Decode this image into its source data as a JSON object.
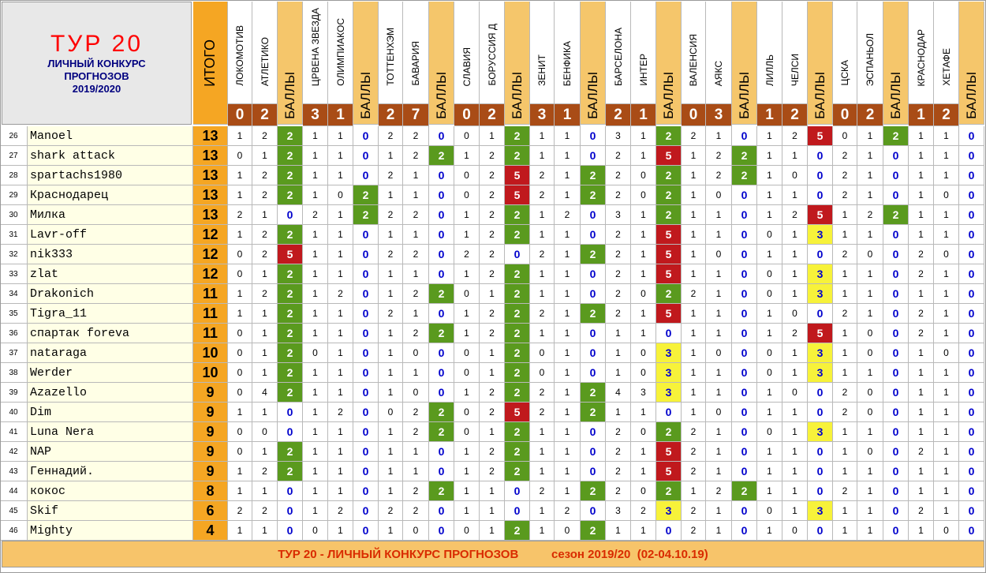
{
  "header": {
    "title_line1": "ТУР  20",
    "title_line2": "ЛИЧНЫЙ  КОНКУРС",
    "title_line3": "ПРОГНОЗОВ",
    "title_line4": "2019/2020",
    "itogo_label": "ИТОГО",
    "points_label": "БАЛЛЫ"
  },
  "matches": [
    {
      "home": "ЛОКОМОТИВ",
      "away": "АТЛЕТИКО",
      "home_goals": "0",
      "away_goals": "2"
    },
    {
      "home": "ЦРВЕНА ЗВЕЗДА",
      "away": "ОЛИМПИАКОС",
      "home_goals": "3",
      "away_goals": "1"
    },
    {
      "home": "ТОТТЕНХЭМ",
      "away": "БАВАРИЯ",
      "home_goals": "2",
      "away_goals": "7"
    },
    {
      "home": "СЛАВИЯ",
      "away": "БОРУССИЯ Д",
      "home_goals": "0",
      "away_goals": "2"
    },
    {
      "home": "ЗЕНИТ",
      "away": "БЕНФИКА",
      "home_goals": "3",
      "away_goals": "1"
    },
    {
      "home": "БАРСЕЛОНА",
      "away": "ИНТЕР",
      "home_goals": "2",
      "away_goals": "1"
    },
    {
      "home": "ВАЛЕНСИЯ",
      "away": "АЯКС",
      "home_goals": "0",
      "away_goals": "3"
    },
    {
      "home": "ЛИЛЛЬ",
      "away": "ЧЕЛСИ",
      "home_goals": "1",
      "away_goals": "2"
    },
    {
      "home": "ЦСКА",
      "away": "ЭСПАНЬОЛ",
      "home_goals": "0",
      "away_goals": "2"
    },
    {
      "home": "КРАСНОДАР",
      "away": "ХЕТАФЕ",
      "home_goals": "1",
      "away_goals": "2"
    }
  ],
  "rows": [
    {
      "num": "26",
      "name": "Manoel",
      "total": "13",
      "cells": [
        [
          "1",
          "2",
          "2"
        ],
        [
          "1",
          "1",
          "0"
        ],
        [
          "2",
          "2",
          "0"
        ],
        [
          "0",
          "1",
          "2"
        ],
        [
          "1",
          "1",
          "0"
        ],
        [
          "3",
          "1",
          "2"
        ],
        [
          "2",
          "1",
          "0"
        ],
        [
          "1",
          "2",
          "5"
        ],
        [
          "0",
          "1",
          "2"
        ],
        [
          "1",
          "1",
          "0"
        ]
      ]
    },
    {
      "num": "27",
      "name": "shark attack",
      "total": "13",
      "cells": [
        [
          "0",
          "1",
          "2"
        ],
        [
          "1",
          "1",
          "0"
        ],
        [
          "1",
          "2",
          "2"
        ],
        [
          "1",
          "2",
          "2"
        ],
        [
          "1",
          "1",
          "0"
        ],
        [
          "2",
          "1",
          "5"
        ],
        [
          "1",
          "2",
          "2"
        ],
        [
          "1",
          "1",
          "0"
        ],
        [
          "2",
          "1",
          "0"
        ],
        [
          "1",
          "1",
          "0"
        ]
      ]
    },
    {
      "num": "28",
      "name": "spartachs1980",
      "total": "13",
      "cells": [
        [
          "1",
          "2",
          "2"
        ],
        [
          "1",
          "1",
          "0"
        ],
        [
          "2",
          "1",
          "0"
        ],
        [
          "0",
          "2",
          "5"
        ],
        [
          "2",
          "1",
          "2"
        ],
        [
          "2",
          "0",
          "2"
        ],
        [
          "1",
          "2",
          "2"
        ],
        [
          "1",
          "0",
          "0"
        ],
        [
          "2",
          "1",
          "0"
        ],
        [
          "1",
          "1",
          "0"
        ]
      ]
    },
    {
      "num": "29",
      "name": "Краснодарец",
      "total": "13",
      "cells": [
        [
          "1",
          "2",
          "2"
        ],
        [
          "1",
          "0",
          "2"
        ],
        [
          "1",
          "1",
          "0"
        ],
        [
          "0",
          "2",
          "5"
        ],
        [
          "2",
          "1",
          "2"
        ],
        [
          "2",
          "0",
          "2"
        ],
        [
          "1",
          "0",
          "0"
        ],
        [
          "1",
          "1",
          "0"
        ],
        [
          "2",
          "1",
          "0"
        ],
        [
          "1",
          "0",
          "0"
        ]
      ]
    },
    {
      "num": "30",
      "name": "Милка",
      "total": "13",
      "cells": [
        [
          "2",
          "1",
          "0"
        ],
        [
          "2",
          "1",
          "2"
        ],
        [
          "2",
          "2",
          "0"
        ],
        [
          "1",
          "2",
          "2"
        ],
        [
          "1",
          "2",
          "0"
        ],
        [
          "3",
          "1",
          "2"
        ],
        [
          "1",
          "1",
          "0"
        ],
        [
          "1",
          "2",
          "5"
        ],
        [
          "1",
          "2",
          "2"
        ],
        [
          "1",
          "1",
          "0"
        ]
      ]
    },
    {
      "num": "31",
      "name": "Lavr-off",
      "total": "12",
      "cells": [
        [
          "1",
          "2",
          "2"
        ],
        [
          "1",
          "1",
          "0"
        ],
        [
          "1",
          "1",
          "0"
        ],
        [
          "1",
          "2",
          "2"
        ],
        [
          "1",
          "1",
          "0"
        ],
        [
          "2",
          "1",
          "5"
        ],
        [
          "1",
          "1",
          "0"
        ],
        [
          "0",
          "1",
          "3"
        ],
        [
          "1",
          "1",
          "0"
        ],
        [
          "1",
          "1",
          "0"
        ]
      ]
    },
    {
      "num": "32",
      "name": "nik333",
      "total": "12",
      "cells": [
        [
          "0",
          "2",
          "5"
        ],
        [
          "1",
          "1",
          "0"
        ],
        [
          "2",
          "2",
          "0"
        ],
        [
          "2",
          "2",
          "0"
        ],
        [
          "2",
          "1",
          "2"
        ],
        [
          "2",
          "1",
          "5"
        ],
        [
          "1",
          "0",
          "0"
        ],
        [
          "1",
          "1",
          "0"
        ],
        [
          "2",
          "0",
          "0"
        ],
        [
          "2",
          "0",
          "0"
        ]
      ]
    },
    {
      "num": "33",
      "name": "zlat",
      "total": "12",
      "cells": [
        [
          "0",
          "1",
          "2"
        ],
        [
          "1",
          "1",
          "0"
        ],
        [
          "1",
          "1",
          "0"
        ],
        [
          "1",
          "2",
          "2"
        ],
        [
          "1",
          "1",
          "0"
        ],
        [
          "2",
          "1",
          "5"
        ],
        [
          "1",
          "1",
          "0"
        ],
        [
          "0",
          "1",
          "3"
        ],
        [
          "1",
          "1",
          "0"
        ],
        [
          "2",
          "1",
          "0"
        ]
      ]
    },
    {
      "num": "34",
      "name": "Drakonich",
      "total": "11",
      "cells": [
        [
          "1",
          "2",
          "2"
        ],
        [
          "1",
          "2",
          "0"
        ],
        [
          "1",
          "2",
          "2"
        ],
        [
          "0",
          "1",
          "2"
        ],
        [
          "1",
          "1",
          "0"
        ],
        [
          "2",
          "0",
          "2"
        ],
        [
          "2",
          "1",
          "0"
        ],
        [
          "0",
          "1",
          "3"
        ],
        [
          "1",
          "1",
          "0"
        ],
        [
          "1",
          "1",
          "0"
        ]
      ]
    },
    {
      "num": "35",
      "name": "Tigra_11",
      "total": "11",
      "cells": [
        [
          "1",
          "1",
          "2"
        ],
        [
          "1",
          "1",
          "0"
        ],
        [
          "2",
          "1",
          "0"
        ],
        [
          "1",
          "2",
          "2"
        ],
        [
          "2",
          "1",
          "2"
        ],
        [
          "2",
          "1",
          "5"
        ],
        [
          "1",
          "1",
          "0"
        ],
        [
          "1",
          "0",
          "0"
        ],
        [
          "2",
          "1",
          "0"
        ],
        [
          "2",
          "1",
          "0"
        ]
      ]
    },
    {
      "num": "36",
      "name": "спартак foreva",
      "total": "11",
      "cells": [
        [
          "0",
          "1",
          "2"
        ],
        [
          "1",
          "1",
          "0"
        ],
        [
          "1",
          "2",
          "2"
        ],
        [
          "1",
          "2",
          "2"
        ],
        [
          "1",
          "1",
          "0"
        ],
        [
          "1",
          "1",
          "0"
        ],
        [
          "1",
          "1",
          "0"
        ],
        [
          "1",
          "2",
          "5"
        ],
        [
          "1",
          "0",
          "0"
        ],
        [
          "2",
          "1",
          "0"
        ]
      ]
    },
    {
      "num": "37",
      "name": "nataraga",
      "total": "10",
      "cells": [
        [
          "0",
          "1",
          "2"
        ],
        [
          "0",
          "1",
          "0"
        ],
        [
          "1",
          "0",
          "0"
        ],
        [
          "0",
          "1",
          "2"
        ],
        [
          "0",
          "1",
          "0"
        ],
        [
          "1",
          "0",
          "3"
        ],
        [
          "1",
          "0",
          "0"
        ],
        [
          "0",
          "1",
          "3"
        ],
        [
          "1",
          "0",
          "0"
        ],
        [
          "1",
          "0",
          "0"
        ]
      ]
    },
    {
      "num": "38",
      "name": "Werder",
      "total": "10",
      "cells": [
        [
          "0",
          "1",
          "2"
        ],
        [
          "1",
          "1",
          "0"
        ],
        [
          "1",
          "1",
          "0"
        ],
        [
          "0",
          "1",
          "2"
        ],
        [
          "0",
          "1",
          "0"
        ],
        [
          "1",
          "0",
          "3"
        ],
        [
          "1",
          "1",
          "0"
        ],
        [
          "0",
          "1",
          "3"
        ],
        [
          "1",
          "1",
          "0"
        ],
        [
          "1",
          "1",
          "0"
        ]
      ]
    },
    {
      "num": "39",
      "name": "Azazello",
      "total": "9",
      "cells": [
        [
          "0",
          "4",
          "2"
        ],
        [
          "1",
          "1",
          "0"
        ],
        [
          "1",
          "0",
          "0"
        ],
        [
          "1",
          "2",
          "2"
        ],
        [
          "2",
          "1",
          "2"
        ],
        [
          "4",
          "3",
          "3"
        ],
        [
          "1",
          "1",
          "0"
        ],
        [
          "1",
          "0",
          "0"
        ],
        [
          "2",
          "0",
          "0"
        ],
        [
          "1",
          "1",
          "0"
        ]
      ]
    },
    {
      "num": "40",
      "name": "Dim",
      "total": "9",
      "cells": [
        [
          "1",
          "1",
          "0"
        ],
        [
          "1",
          "2",
          "0"
        ],
        [
          "0",
          "2",
          "2"
        ],
        [
          "0",
          "2",
          "5"
        ],
        [
          "2",
          "1",
          "2"
        ],
        [
          "1",
          "1",
          "0"
        ],
        [
          "1",
          "0",
          "0"
        ],
        [
          "1",
          "1",
          "0"
        ],
        [
          "2",
          "0",
          "0"
        ],
        [
          "1",
          "1",
          "0"
        ]
      ]
    },
    {
      "num": "41",
      "name": "Luna Nera",
      "total": "9",
      "cells": [
        [
          "0",
          "0",
          "0"
        ],
        [
          "1",
          "1",
          "0"
        ],
        [
          "1",
          "2",
          "2"
        ],
        [
          "0",
          "1",
          "2"
        ],
        [
          "1",
          "1",
          "0"
        ],
        [
          "2",
          "0",
          "2"
        ],
        [
          "2",
          "1",
          "0"
        ],
        [
          "0",
          "1",
          "3"
        ],
        [
          "1",
          "1",
          "0"
        ],
        [
          "1",
          "1",
          "0"
        ]
      ]
    },
    {
      "num": "42",
      "name": "NAP",
      "total": "9",
      "cells": [
        [
          "0",
          "1",
          "2"
        ],
        [
          "1",
          "1",
          "0"
        ],
        [
          "1",
          "1",
          "0"
        ],
        [
          "1",
          "2",
          "2"
        ],
        [
          "1",
          "1",
          "0"
        ],
        [
          "2",
          "1",
          "5"
        ],
        [
          "2",
          "1",
          "0"
        ],
        [
          "1",
          "1",
          "0"
        ],
        [
          "1",
          "0",
          "0"
        ],
        [
          "2",
          "1",
          "0"
        ]
      ]
    },
    {
      "num": "43",
      "name": "Геннадий.",
      "total": "9",
      "cells": [
        [
          "1",
          "2",
          "2"
        ],
        [
          "1",
          "1",
          "0"
        ],
        [
          "1",
          "1",
          "0"
        ],
        [
          "1",
          "2",
          "2"
        ],
        [
          "1",
          "1",
          "0"
        ],
        [
          "2",
          "1",
          "5"
        ],
        [
          "2",
          "1",
          "0"
        ],
        [
          "1",
          "1",
          "0"
        ],
        [
          "1",
          "1",
          "0"
        ],
        [
          "1",
          "1",
          "0"
        ]
      ]
    },
    {
      "num": "44",
      "name": "кокос",
      "total": "8",
      "cells": [
        [
          "1",
          "1",
          "0"
        ],
        [
          "1",
          "1",
          "0"
        ],
        [
          "1",
          "2",
          "2"
        ],
        [
          "1",
          "1",
          "0"
        ],
        [
          "2",
          "1",
          "2"
        ],
        [
          "2",
          "0",
          "2"
        ],
        [
          "1",
          "2",
          "2"
        ],
        [
          "1",
          "1",
          "0"
        ],
        [
          "2",
          "1",
          "0"
        ],
        [
          "1",
          "1",
          "0"
        ]
      ]
    },
    {
      "num": "45",
      "name": "Skif",
      "total": "6",
      "cells": [
        [
          "2",
          "2",
          "0"
        ],
        [
          "1",
          "2",
          "0"
        ],
        [
          "2",
          "2",
          "0"
        ],
        [
          "1",
          "1",
          "0"
        ],
        [
          "1",
          "2",
          "0"
        ],
        [
          "3",
          "2",
          "3"
        ],
        [
          "2",
          "1",
          "0"
        ],
        [
          "0",
          "1",
          "3"
        ],
        [
          "1",
          "1",
          "0"
        ],
        [
          "2",
          "1",
          "0"
        ]
      ]
    },
    {
      "num": "46",
      "name": "Mighty",
      "total": "4",
      "cells": [
        [
          "1",
          "1",
          "0"
        ],
        [
          "0",
          "1",
          "0"
        ],
        [
          "1",
          "0",
          "0"
        ],
        [
          "0",
          "1",
          "2"
        ],
        [
          "1",
          "0",
          "2"
        ],
        [
          "1",
          "1",
          "0"
        ],
        [
          "2",
          "1",
          "0"
        ],
        [
          "1",
          "0",
          "0"
        ],
        [
          "1",
          "1",
          "0"
        ],
        [
          "1",
          "0",
          "0"
        ]
      ]
    }
  ],
  "footer": {
    "left": "ТУР 20 - ЛИЧНЫЙ КОНКУРС ПРОГНОЗОВ",
    "right": "сезон 2019/20  (02-04.10.19)"
  },
  "colors": {
    "itogo_bg": "#f5a623",
    "points_header_bg": "#f5c66b",
    "score_header_bg": "#a94c16",
    "points_2": "#5a9a1e",
    "points_3": "#f7f23a",
    "points_5": "#c0191d",
    "points_0_text": "#0000cc",
    "title_red": "#ff0000",
    "title_navy": "#00007f",
    "footer_bg": "#f7c46a",
    "footer_text": "#d92b00"
  }
}
